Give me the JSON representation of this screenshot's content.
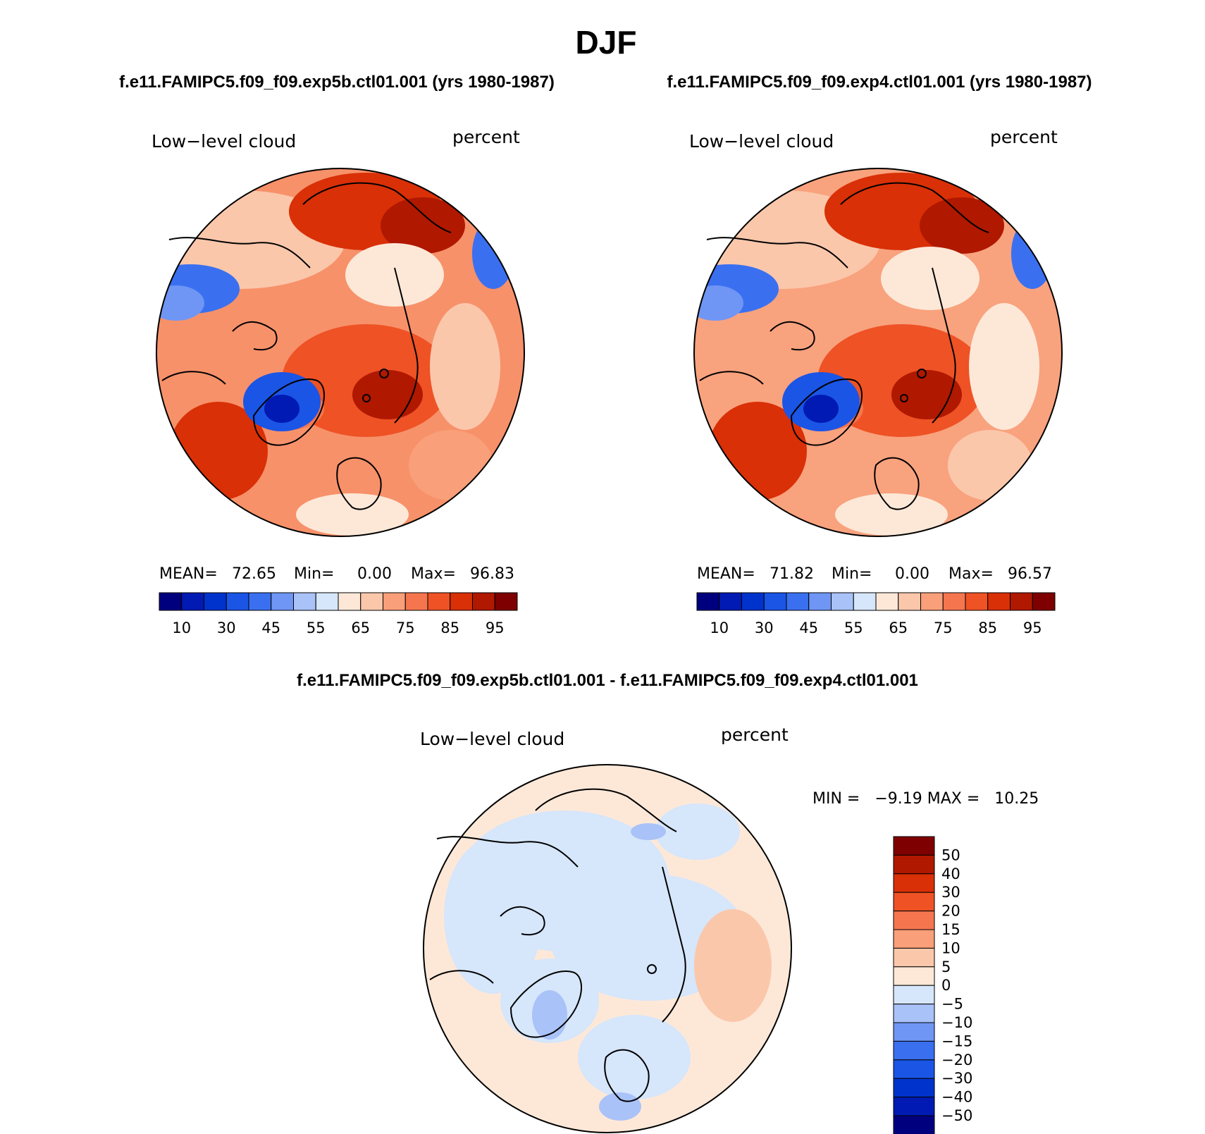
{
  "title": "DJF",
  "panels": [
    {
      "case_title": "f.e11.FAMIPC5.f09_f09.exp5b.ctl01.001 (yrs 1980-1987)",
      "variable": "Low−level cloud",
      "units": "percent",
      "stats": {
        "mean_label": "MEAN=",
        "mean": "72.65",
        "min_label": "Min=",
        "min": "0.00",
        "max_label": "Max=",
        "max": "96.83"
      }
    },
    {
      "case_title": "f.e11.FAMIPC5.f09_f09.exp4.ctl01.001 (yrs 1980-1987)",
      "variable": "Low−level cloud",
      "units": "percent",
      "stats": {
        "mean_label": "MEAN=",
        "mean": "71.82",
        "min_label": "Min=",
        "min": "0.00",
        "max_label": "Max=",
        "max": "96.57"
      }
    }
  ],
  "abs_colorbar": {
    "colors": [
      "#00007f",
      "#001ab3",
      "#0033cc",
      "#1a55e6",
      "#3a70f0",
      "#6f96f4",
      "#a9c2f8",
      "#d6e6fb",
      "#fde8d8",
      "#fbc7ab",
      "#f99f79",
      "#f5764e",
      "#ee5225",
      "#d93007",
      "#b01800",
      "#7f0000"
    ],
    "labels": [
      "10",
      "30",
      "45",
      "55",
      "65",
      "75",
      "85",
      "95"
    ]
  },
  "diff": {
    "title": "f.e11.FAMIPC5.f09_f09.exp5b.ctl01.001 - f.e11.FAMIPC5.f09_f09.exp4.ctl01.001",
    "variable": "Low−level cloud",
    "units": "percent",
    "stats_text": "MIN =   −9.19 MAX =   10.25"
  },
  "diff_colorbar": {
    "colors": [
      "#7f0000",
      "#b01800",
      "#d93007",
      "#ee5225",
      "#f5764e",
      "#f99f79",
      "#fbc7ab",
      "#fde8d8",
      "#d6e6fb",
      "#a9c2f8",
      "#6f96f4",
      "#3a70f0",
      "#1a55e6",
      "#0033cc",
      "#001ab3",
      "#00007f"
    ],
    "labels": [
      "50",
      "40",
      "30",
      "20",
      "15",
      "10",
      "5",
      "0",
      "−5",
      "−10",
      "−15",
      "−20",
      "−30",
      "−40",
      "−50"
    ]
  }
}
